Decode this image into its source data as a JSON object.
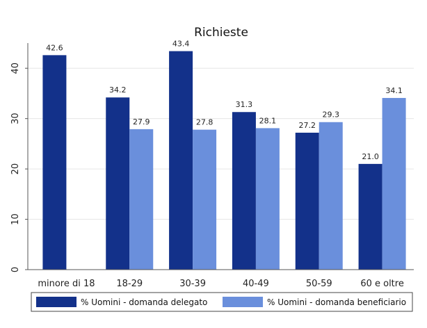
{
  "chart_data": {
    "type": "bar",
    "title": "Richieste",
    "xlabel": "",
    "ylabel": "",
    "ylim": [
      0,
      45
    ],
    "yticks": [
      0,
      10,
      20,
      30,
      40
    ],
    "grid": true,
    "legend_position": "bottom",
    "categories": [
      "minore di 18",
      "18-29",
      "30-39",
      "40-49",
      "50-59",
      "60 e oltre"
    ],
    "series": [
      {
        "name": "% Uomini - domanda delegato",
        "color": "#13318a",
        "values": [
          42.6,
          34.2,
          43.4,
          31.3,
          27.2,
          21.0
        ],
        "labels": [
          "42.6",
          "34.2",
          "43.4",
          "31.3",
          "27.2",
          "21.0"
        ]
      },
      {
        "name": "% Uomini - domanda beneficiario",
        "color": "#6a8fdc",
        "values": [
          null,
          27.9,
          27.8,
          28.1,
          29.3,
          34.1
        ],
        "labels": [
          "",
          "27.9",
          "27.8",
          "28.1",
          "29.3",
          "34.1"
        ]
      }
    ]
  }
}
